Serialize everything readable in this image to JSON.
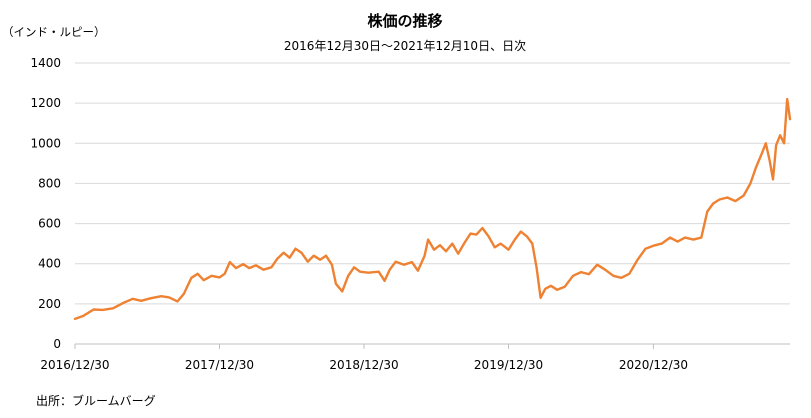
{
  "chart_data": {
    "type": "line",
    "title": "株価の推移",
    "subtitle": "2016年12月30日～2021年12月10日、日次",
    "ylabel": "（インド・ルピー）",
    "xlabel": "",
    "ylim": [
      0,
      1400
    ],
    "yticks": [
      "0",
      "200",
      "400",
      "600",
      "800",
      "1000",
      "1200",
      "1400"
    ],
    "xrange": [
      "2016-12-30",
      "2021-12-10"
    ],
    "xticks": [
      {
        "date": "2016-12-30",
        "label": "2016/12/30"
      },
      {
        "date": "2017-12-30",
        "label": "2017/12/30"
      },
      {
        "date": "2018-12-30",
        "label": "2018/12/30"
      },
      {
        "date": "2019-12-30",
        "label": "2019/12/30"
      },
      {
        "date": "2020-12-30",
        "label": "2020/12/30"
      }
    ],
    "grid": "horizontal",
    "legend": "none",
    "source": "出所：ブルームバーグ",
    "color": "#ee8232",
    "series": [
      {
        "values": [
          [
            "2016-12-30",
            125
          ],
          [
            "2017-01-20",
            140
          ],
          [
            "2017-02-15",
            172
          ],
          [
            "2017-03-10",
            170
          ],
          [
            "2017-04-05",
            178
          ],
          [
            "2017-05-01",
            205
          ],
          [
            "2017-05-25",
            225
          ],
          [
            "2017-06-15",
            215
          ],
          [
            "2017-07-10",
            228
          ],
          [
            "2017-08-05",
            238
          ],
          [
            "2017-08-25",
            232
          ],
          [
            "2017-09-15",
            212
          ],
          [
            "2017-10-01",
            250
          ],
          [
            "2017-10-20",
            330
          ],
          [
            "2017-11-05",
            350
          ],
          [
            "2017-11-20",
            318
          ],
          [
            "2017-12-10",
            340
          ],
          [
            "2017-12-30",
            332
          ],
          [
            "2018-01-12",
            350
          ],
          [
            "2018-01-25",
            408
          ],
          [
            "2018-02-10",
            378
          ],
          [
            "2018-02-28",
            398
          ],
          [
            "2018-03-15",
            378
          ],
          [
            "2018-04-01",
            392
          ],
          [
            "2018-04-20",
            370
          ],
          [
            "2018-05-10",
            382
          ],
          [
            "2018-05-25",
            425
          ],
          [
            "2018-06-10",
            455
          ],
          [
            "2018-06-25",
            430
          ],
          [
            "2018-07-10",
            475
          ],
          [
            "2018-07-25",
            455
          ],
          [
            "2018-08-10",
            410
          ],
          [
            "2018-08-25",
            440
          ],
          [
            "2018-09-10",
            420
          ],
          [
            "2018-09-25",
            440
          ],
          [
            "2018-10-10",
            395
          ],
          [
            "2018-10-20",
            300
          ],
          [
            "2018-11-05",
            262
          ],
          [
            "2018-11-20",
            340
          ],
          [
            "2018-12-05",
            382
          ],
          [
            "2018-12-20",
            360
          ],
          [
            "2019-01-10",
            355
          ],
          [
            "2019-02-05",
            360
          ],
          [
            "2019-02-20",
            315
          ],
          [
            "2019-03-05",
            370
          ],
          [
            "2019-03-20",
            410
          ],
          [
            "2019-04-10",
            395
          ],
          [
            "2019-04-30",
            408
          ],
          [
            "2019-05-15",
            365
          ],
          [
            "2019-06-01",
            440
          ],
          [
            "2019-06-10",
            520
          ],
          [
            "2019-06-25",
            470
          ],
          [
            "2019-07-10",
            492
          ],
          [
            "2019-07-25",
            462
          ],
          [
            "2019-08-10",
            500
          ],
          [
            "2019-08-25",
            450
          ],
          [
            "2019-09-10",
            505
          ],
          [
            "2019-09-25",
            550
          ],
          [
            "2019-10-10",
            545
          ],
          [
            "2019-10-25",
            578
          ],
          [
            "2019-11-10",
            535
          ],
          [
            "2019-11-25",
            482
          ],
          [
            "2019-12-10",
            500
          ],
          [
            "2019-12-30",
            470
          ],
          [
            "2020-01-15",
            520
          ],
          [
            "2020-01-30",
            560
          ],
          [
            "2020-02-15",
            535
          ],
          [
            "2020-02-28",
            500
          ],
          [
            "2020-03-10",
            380
          ],
          [
            "2020-03-20",
            230
          ],
          [
            "2020-04-01",
            275
          ],
          [
            "2020-04-15",
            290
          ],
          [
            "2020-05-01",
            270
          ],
          [
            "2020-05-20",
            285
          ],
          [
            "2020-06-10",
            340
          ],
          [
            "2020-06-30",
            358
          ],
          [
            "2020-07-20",
            348
          ],
          [
            "2020-08-10",
            395
          ],
          [
            "2020-08-30",
            370
          ],
          [
            "2020-09-20",
            340
          ],
          [
            "2020-10-10",
            330
          ],
          [
            "2020-10-30",
            350
          ],
          [
            "2020-11-20",
            420
          ],
          [
            "2020-12-10",
            475
          ],
          [
            "2020-12-30",
            490
          ],
          [
            "2021-01-20",
            500
          ],
          [
            "2021-02-10",
            530
          ],
          [
            "2021-03-01",
            510
          ],
          [
            "2021-03-20",
            530
          ],
          [
            "2021-04-10",
            520
          ],
          [
            "2021-04-30",
            530
          ],
          [
            "2021-05-15",
            660
          ],
          [
            "2021-05-30",
            700
          ],
          [
            "2021-06-15",
            720
          ],
          [
            "2021-07-05",
            730
          ],
          [
            "2021-07-25",
            712
          ],
          [
            "2021-08-15",
            740
          ],
          [
            "2021-09-01",
            800
          ],
          [
            "2021-09-15",
            880
          ],
          [
            "2021-09-30",
            950
          ],
          [
            "2021-10-10",
            1000
          ],
          [
            "2021-10-20",
            910
          ],
          [
            "2021-10-28",
            820
          ],
          [
            "2021-11-05",
            990
          ],
          [
            "2021-11-15",
            1040
          ],
          [
            "2021-11-25",
            1000
          ],
          [
            "2021-12-03",
            1220
          ],
          [
            "2021-12-10",
            1120
          ]
        ]
      }
    ]
  }
}
